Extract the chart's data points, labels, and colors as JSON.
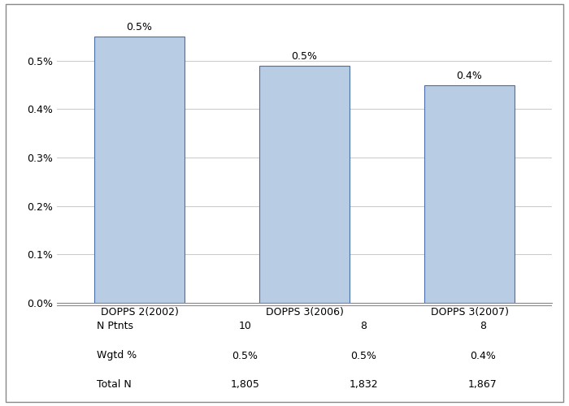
{
  "categories": [
    "DOPPS 2(2002)",
    "DOPPS 3(2006)",
    "DOPPS 3(2007)"
  ],
  "values": [
    0.0055,
    0.0049,
    0.00449
  ],
  "bar_labels": [
    "0.5%",
    "0.5%",
    "0.4%"
  ],
  "bar_color": "#b8cce4",
  "bar_edge_color": "#4a6fa5",
  "ylim": [
    0,
    0.006
  ],
  "yticks": [
    0.0,
    0.001,
    0.002,
    0.003,
    0.004,
    0.005
  ],
  "ytick_labels": [
    "0.0%",
    "0.1%",
    "0.2%",
    "0.3%",
    "0.4%",
    "0.5%"
  ],
  "background_color": "#ffffff",
  "grid_color": "#cccccc",
  "table_rows": [
    "N Ptnts",
    "Wgtd %",
    "Total N"
  ],
  "table_data": [
    [
      "10",
      "8",
      "8"
    ],
    [
      "0.5%",
      "0.5%",
      "0.4%"
    ],
    [
      "1,805",
      "1,832",
      "1,867"
    ]
  ],
  "bar_width": 0.55,
  "fontsize": 9
}
